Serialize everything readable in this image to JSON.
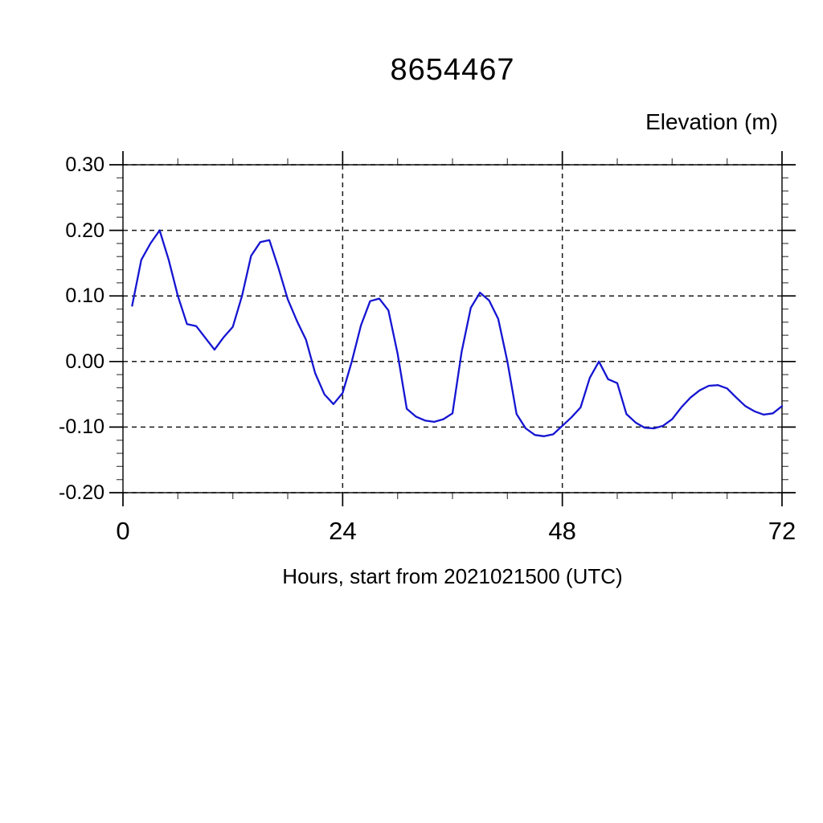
{
  "title": "8654467",
  "y_axis_title": "Elevation (m)",
  "x_axis_title": "Hours, start from 2021021500 (UTC)",
  "x_tick_labels": [
    "0",
    "24",
    "48",
    "72"
  ],
  "y_tick_labels": [
    "0.30",
    "0.20",
    "0.10",
    "0.00",
    "-0.10",
    "-0.20"
  ],
  "colors": {
    "line": "#1515d2",
    "frame": "#000000",
    "grid": "#1a1a1a",
    "minor_tick": "#555555",
    "background": "#ffffff"
  },
  "chart_data": {
    "type": "line",
    "title": "8654467",
    "xlabel": "Hours, start from 2021021500 (UTC)",
    "ylabel": "Elevation (m)",
    "xlim": [
      0,
      72
    ],
    "ylim": [
      -0.2,
      0.3
    ],
    "x_major_ticks": [
      0,
      24,
      48,
      72
    ],
    "x_minor_step": 6,
    "y_major_ticks": [
      0.3,
      0.2,
      0.1,
      0.0,
      -0.1,
      -0.2
    ],
    "y_minor_step": 0.02,
    "grid": "dashed at major ticks, all four axes with outward ticks",
    "legend_position": "none",
    "series": [
      {
        "name": "elevation",
        "color": "#1515d2",
        "x": [
          1,
          2,
          3,
          4,
          5,
          6,
          7,
          8,
          9,
          10,
          11,
          12,
          13,
          14,
          15,
          16,
          17,
          18,
          19,
          20,
          21,
          22,
          23,
          24,
          25,
          26,
          27,
          28,
          29,
          30,
          31,
          32,
          33,
          34,
          35,
          36,
          37,
          38,
          39,
          40,
          41,
          42,
          43,
          44,
          45,
          46,
          47,
          48,
          49,
          50,
          51,
          52,
          53,
          54,
          55,
          56,
          57,
          58,
          59,
          60,
          61,
          62,
          63,
          64,
          65,
          66,
          67,
          68,
          69,
          70,
          71,
          72
        ],
        "y": [
          0.085,
          0.155,
          0.18,
          0.2,
          0.155,
          0.1,
          0.057,
          0.054,
          0.036,
          0.018,
          0.037,
          0.053,
          0.1,
          0.161,
          0.182,
          0.185,
          0.142,
          0.095,
          0.062,
          0.033,
          -0.018,
          -0.05,
          -0.065,
          -0.048,
          0.0,
          0.055,
          0.092,
          0.096,
          0.078,
          0.012,
          -0.072,
          -0.084,
          -0.09,
          -0.092,
          -0.088,
          -0.079,
          0.015,
          0.082,
          0.105,
          0.093,
          0.065,
          0.0,
          -0.08,
          -0.102,
          -0.112,
          -0.114,
          -0.111,
          -0.098,
          -0.085,
          -0.07,
          -0.025,
          0.0,
          -0.027,
          -0.033,
          -0.08,
          -0.093,
          -0.101,
          -0.102,
          -0.098,
          -0.088,
          -0.07,
          -0.055,
          -0.044,
          -0.037,
          -0.036,
          -0.041,
          -0.055,
          -0.068,
          -0.076,
          -0.081,
          -0.079,
          -0.068
        ]
      }
    ]
  }
}
